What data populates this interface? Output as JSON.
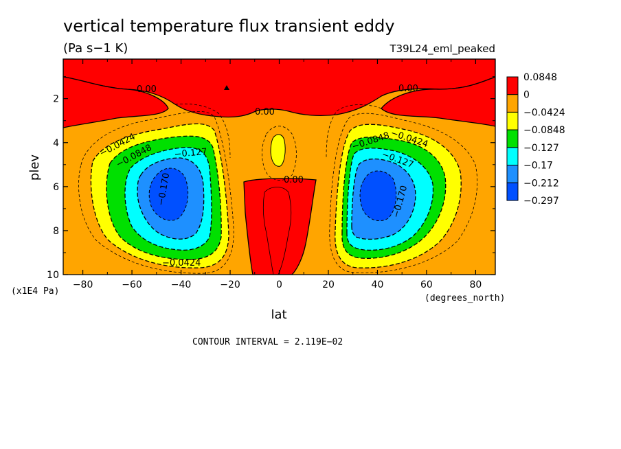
{
  "chart_data": {
    "type": "contour",
    "title": "vertical temperature flux transient eddy",
    "units": "(Pa s−1 K)",
    "dataset": "T39L24_eml_peaked",
    "xlabel": "lat",
    "x_units": "(degrees_north)",
    "ylabel": "plev",
    "y_units": "(x1E4 Pa)",
    "xlim": [
      -88,
      88
    ],
    "ylim": [
      0.2,
      10
    ],
    "y_inverted": true,
    "x_ticks": [
      -80,
      -60,
      -40,
      -20,
      0,
      20,
      40,
      60,
      80
    ],
    "x_tick_labels": [
      "−80",
      "−60",
      "−40",
      "−20",
      "0",
      "20",
      "40",
      "60",
      "80"
    ],
    "y_ticks": [
      2,
      4,
      6,
      8,
      10
    ],
    "y_tick_labels": [
      "2",
      "4",
      "6",
      "8",
      "10"
    ],
    "colorbar": {
      "levels": [
        "0.0848",
        "0",
        "−0.0424",
        "−0.0848",
        "−0.127",
        "−0.17",
        "−0.212",
        "−0.297"
      ],
      "colors": [
        "#ff0000",
        "#ffa500",
        "#ffff00",
        "#00e000",
        "#00ffff",
        "#1e90ff",
        "#0050ff"
      ]
    },
    "contour_labels": [
      {
        "text": "0.00",
        "lat": -52,
        "plev": 1.8
      },
      {
        "text": "0.00",
        "lat": 52,
        "plev": 1.8
      },
      {
        "text": "0.00",
        "lat": -5,
        "plev": 2.8
      },
      {
        "text": "0.00",
        "lat": 7,
        "plev": 5.5
      },
      {
        "text": "−0.0424",
        "lat": -70,
        "plev": 4.2
      },
      {
        "text": "−0.0848",
        "lat": -63,
        "plev": 4.8
      },
      {
        "text": "−0.127",
        "lat": -38,
        "plev": 4.5
      },
      {
        "text": "−0.170",
        "lat": -34,
        "plev": 6.8
      },
      {
        "text": "−0.0424",
        "lat": -36,
        "plev": 9.5
      },
      {
        "text": "−0.0424",
        "lat": 58,
        "plev": 3.9
      },
      {
        "text": "−0.0848",
        "lat": 40,
        "plev": 4.1
      },
      {
        "text": "−0.127",
        "lat": 48,
        "plev": 4.6
      },
      {
        "text": "−0.170",
        "lat": 50,
        "plev": 7.0
      }
    ],
    "contour_interval_text": "CONTOUR INTERVAL = 2.119E−02"
  }
}
